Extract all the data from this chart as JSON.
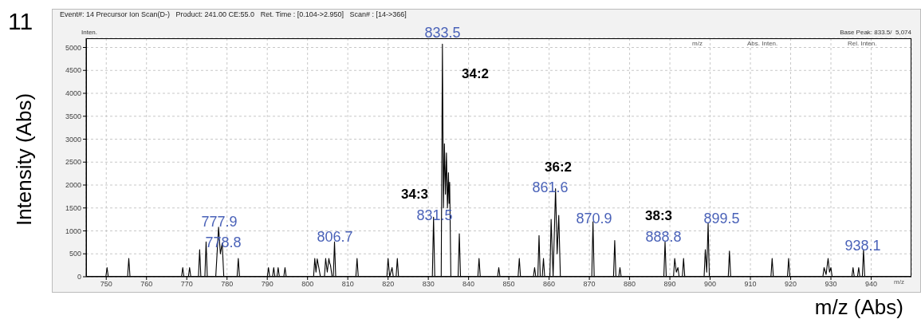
{
  "chart_data": {
    "type": "line",
    "title": "Event#: 14 Precursor Ion Scan(D-)   Product: 241.00 CE:55.0   Ret. Time : [0.104->2.950]   Scan# : [14->366]",
    "xlabel": "m/z (Abs)",
    "ylabel": "Intensity (Abs)",
    "x": [
      745,
      749.9,
      750.2,
      750.5,
      755.3,
      755.6,
      755.9,
      768.7,
      769,
      769.3,
      770.4,
      770.7,
      771,
      772.9,
      773.2,
      773.5,
      774.5,
      774.8,
      775.1,
      777.2,
      777.9,
      778.35,
      778.8,
      779.2,
      782.5,
      782.8,
      783.1,
      790.0,
      790.3,
      790.6,
      791.3,
      791.6,
      791.9,
      792.4,
      792.7,
      793.0,
      794.1,
      794.4,
      794.7,
      801.5,
      801.8,
      802.1,
      802.4,
      802.8,
      803.2,
      804.2,
      804.5,
      804.9,
      805.3,
      805.5,
      805.7,
      806.1,
      806.4,
      806.7,
      807.0,
      812.0,
      812.3,
      812.6,
      819.7,
      820,
      820.4,
      821,
      821.3,
      822.0,
      822.3,
      822.6,
      831.0,
      831.3,
      831.6,
      833.2,
      833.5,
      833.75,
      834.0,
      834.25,
      834.5,
      834.75,
      835.0,
      835.15,
      835.3,
      835.6,
      837.4,
      837.7,
      838.0,
      842.3,
      842.6,
      842.9,
      847.2,
      847.5,
      847.8,
      852.3,
      852.6,
      852.9,
      856.1,
      856.4,
      856.7,
      857.2,
      857.5,
      857.8,
      858.3,
      858.6,
      858.9,
      860.2,
      860.5,
      861.0,
      861.6,
      862.0,
      862.4,
      862.8,
      870.6,
      870.9,
      871.2,
      876.0,
      876.3,
      876.6,
      877.3,
      877.6,
      877.9,
      888.5,
      888.8,
      889.1,
      890.9,
      891.2,
      891.6,
      892.0,
      892.3,
      893.1,
      893.4,
      893.7,
      898.5,
      898.8,
      899.15,
      899.5,
      899.8,
      904.5,
      904.8,
      905.1,
      915.1,
      915.4,
      915.7,
      919.2,
      919.5,
      919.8,
      928.0,
      928.3,
      928.8,
      929.3,
      929.65,
      930.0,
      930.3,
      935.2,
      935.5,
      935.8,
      936.6,
      936.9,
      937.2,
      937.8,
      938.1,
      938.4,
      950
    ],
    "series": [
      {
        "color": "#000000",
        "values": [
          0,
          0,
          200,
          0,
          0,
          400,
          0,
          0,
          200,
          0,
          0,
          200,
          0,
          0,
          590,
          0,
          0,
          760,
          0,
          0,
          1080,
          500,
          730,
          0,
          0,
          400,
          0,
          0,
          200,
          0,
          0,
          200,
          0,
          0,
          200,
          0,
          0,
          200,
          0,
          0,
          400,
          100,
          390,
          200,
          0,
          0,
          400,
          100,
          400,
          300,
          250,
          0,
          0,
          760,
          0,
          0,
          400,
          0,
          0,
          400,
          0,
          200,
          0,
          0,
          400,
          0,
          0,
          1300,
          0,
          0,
          5074,
          1500,
          2900,
          1800,
          2700,
          1500,
          2270,
          1600,
          2060,
          0,
          0,
          940,
          0,
          0,
          400,
          0,
          0,
          200,
          0,
          0,
          400,
          0,
          0,
          200,
          0,
          0,
          900,
          0,
          0,
          400,
          0,
          0,
          1250,
          0,
          1920,
          500,
          1340,
          0,
          0,
          1200,
          0,
          0,
          790,
          0,
          0,
          200,
          0,
          0,
          760,
          0,
          0,
          400,
          100,
          200,
          0,
          0,
          400,
          0,
          0,
          590,
          100,
          1170,
          0,
          0,
          560,
          0,
          0,
          400,
          0,
          0,
          400,
          0,
          0,
          200,
          50,
          400,
          100,
          200,
          0,
          0,
          200,
          0,
          0,
          200,
          0,
          0,
          590,
          0,
          0
        ]
      }
    ],
    "xlim": [
      745,
      950
    ],
    "ylim": [
      0,
      5200
    ],
    "xticks": [
      750,
      760,
      770,
      780,
      790,
      800,
      810,
      820,
      830,
      840,
      850,
      860,
      870,
      880,
      890,
      900,
      910,
      920,
      930,
      940
    ],
    "yticks": [
      0,
      500,
      1000,
      1500,
      2000,
      2500,
      3000,
      3500,
      4000,
      4500,
      5000
    ],
    "grid": true,
    "marker": "none",
    "line_style": "solid",
    "legend": false,
    "annotations": [
      "11",
      "Inten.",
      "Base Peak: 833.5/  5,074",
      "m/z",
      "Abs. Inten.",
      "Rel. Inten.",
      "m/z",
      "833.5",
      "34:2",
      "777.9",
      "778.8",
      "806.7",
      "34:3",
      "831.5",
      "36:2",
      "861.6",
      "870.9",
      "38:3",
      "888.8",
      "899.5",
      "938.1"
    ]
  }
}
